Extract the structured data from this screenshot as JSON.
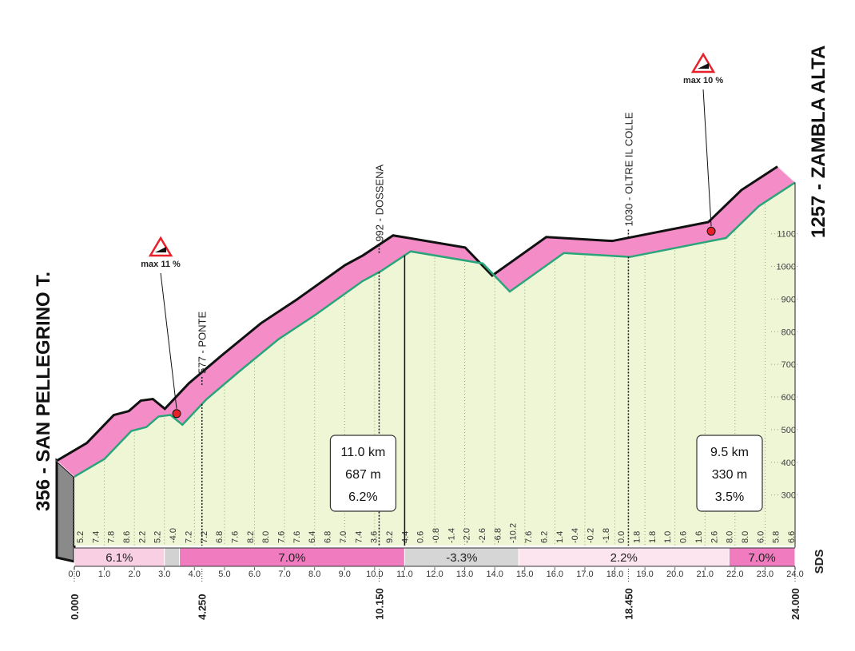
{
  "chart_data": {
    "type": "profile",
    "start_label": "356 - SAN PELLEGRINO T.",
    "finish_label": "1257 - ZAMBLA ALTA",
    "x": [
      0,
      1,
      1.9,
      2.4,
      2.8,
      3.2,
      3.6,
      4.4,
      5.5,
      6.8,
      8.0,
      9.6,
      10.2,
      11.2,
      13.6,
      14.5,
      16.3,
      18.5,
      21.7,
      22.8,
      24.0
    ],
    "values": [
      356,
      410,
      496,
      508,
      540,
      545,
      515,
      593,
      679,
      777,
      850,
      955,
      985,
      1046,
      1009,
      923,
      1041,
      1029,
      1087,
      1185,
      1257
    ],
    "xlim": [
      0,
      24
    ],
    "ylim": [
      150,
      1400
    ],
    "yticks": [
      300,
      400,
      500,
      600,
      700,
      800,
      900,
      1000,
      1100
    ],
    "xticks": [
      {
        "value": 0,
        "label": "0.0"
      },
      {
        "value": 1,
        "label": "1.0"
      },
      {
        "value": 2,
        "label": "2.0"
      },
      {
        "value": 3,
        "label": "3.0"
      },
      {
        "value": 4,
        "label": "4.0"
      },
      {
        "value": 5,
        "label": "5.0"
      },
      {
        "value": 6,
        "label": "6.0"
      },
      {
        "value": 7,
        "label": "7.0"
      },
      {
        "value": 8,
        "label": "8.0"
      },
      {
        "value": 9,
        "label": "9.0"
      },
      {
        "value": 10,
        "label": "10.0"
      },
      {
        "value": 11,
        "label": "11.0"
      },
      {
        "value": 12,
        "label": "12.0"
      },
      {
        "value": 13,
        "label": "13.0"
      },
      {
        "value": 14,
        "label": "14.0"
      },
      {
        "value": 15,
        "label": "15.0"
      },
      {
        "value": 16,
        "label": "16.0"
      },
      {
        "value": 17,
        "label": "17.0"
      },
      {
        "value": 18,
        "label": "18.0"
      },
      {
        "value": 19,
        "label": "19.0"
      },
      {
        "value": 20,
        "label": "20.0"
      },
      {
        "value": 21,
        "label": "21.0"
      },
      {
        "value": 22,
        "label": "22.0"
      },
      {
        "value": 23,
        "label": "23.0"
      },
      {
        "value": 24,
        "label": "24.0"
      }
    ],
    "gradient_labels": [
      "5.2",
      "7.4",
      "7.8",
      "8.6",
      "2.2",
      "5.2",
      "-4.0",
      "7.2",
      "7.2",
      "6.8",
      "7.6",
      "8.2",
      "8.0",
      "7.6",
      "7.6",
      "6.4",
      "6.8",
      "7.0",
      "7.4",
      "3.6",
      "9.2",
      "4.4",
      "0.6",
      "-0.8",
      "-1.4",
      "-2.0",
      "-2.6",
      "-6.8",
      "-10.2",
      "7.6",
      "6.2",
      "1.4",
      "-0.4",
      "-0.2",
      "-1.8",
      "0.0",
      "1.8",
      "1.8",
      "1.0",
      "0.6",
      "1.6",
      "2.6",
      "8.0",
      "8.0",
      "6.0",
      "5.8",
      "6.6"
    ],
    "segments": [
      {
        "start": 0,
        "end": 3.0,
        "label": "6.1%",
        "color": "#f9cfe4"
      },
      {
        "start": 3.0,
        "end": 3.5,
        "color": "#d2d2d2"
      },
      {
        "start": 3.5,
        "end": 11.0,
        "label": "7.0%",
        "color": "#f07cbf"
      },
      {
        "start": 11.0,
        "end": 14.8,
        "label": "-3.3%",
        "color": "#d6d6d6"
      },
      {
        "start": 14.8,
        "end": 21.8,
        "label": "2.2%",
        "color": "#fde5f0"
      },
      {
        "start": 21.8,
        "end": 24.0,
        "label": "7.0%",
        "color": "#f07cbf"
      }
    ],
    "points": [
      {
        "km": 0,
        "label": "0.000"
      },
      {
        "km": 4.25,
        "label": "4.250"
      },
      {
        "km": 10.15,
        "label": "10.150"
      },
      {
        "km": 18.45,
        "label": "18.450"
      },
      {
        "km": 24.0,
        "label": "24.000"
      }
    ],
    "waypoints": [
      {
        "km": 4.25,
        "label": "577 - PONTE"
      },
      {
        "km": 10.15,
        "label": "992 - DOSSENA"
      },
      {
        "km": 18.45,
        "label": "1030 - OLTRE IL COLLE"
      }
    ],
    "max_markers": [
      {
        "km": 3.7,
        "label": "max 11 %"
      },
      {
        "km": 21.5,
        "label": "max 10 %"
      }
    ],
    "climbs": [
      {
        "km": 11.0,
        "distance": "11.0 km",
        "gain": "687 m",
        "gradient": "6.2%"
      },
      {
        "km": 24.0,
        "distance": "9.5 km",
        "gain": "330 m",
        "gradient": "3.5%"
      }
    ],
    "logo": "SDS"
  }
}
